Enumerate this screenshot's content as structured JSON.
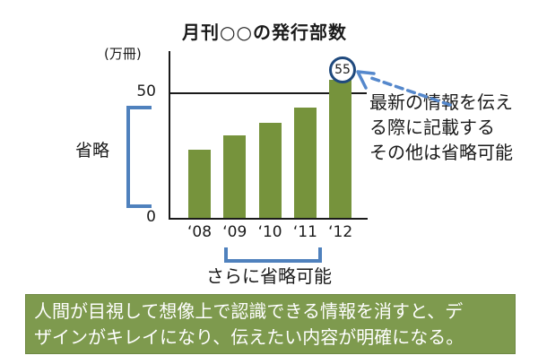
{
  "chart_data": {
    "type": "bar",
    "title": "月刊○○の発行部数",
    "unit_label": "(万冊)",
    "categories": [
      "‘08",
      "‘09",
      "‘10",
      "‘11",
      "‘12"
    ],
    "values": [
      27,
      33,
      38,
      44,
      55
    ],
    "xlabel": "",
    "ylabel": "(万冊)",
    "ylim": [
      0,
      62
    ],
    "yticks": [
      {
        "value": 50,
        "label": "50"
      },
      {
        "value": 0,
        "label": "0"
      }
    ],
    "gridline_at": 50,
    "grid": "single horizontal line at 50 only",
    "legend": false,
    "highlight": {
      "category": "‘12",
      "value": 55,
      "label": "55"
    },
    "bar_color": "#76933C"
  },
  "annotations": {
    "callout_text": "最新の情報を伝え\nる際に記載する\nその他は省略可能",
    "y_axis_omission_label": "省略",
    "x_axis_omission_label": "さらに省略可能"
  },
  "banner": {
    "text": "人間が目視して想像上で認識できる情報を消すと、デ\nザインがキレイになり、伝えたい内容が明確になる。",
    "bg_color": "#7E9A4E",
    "border_color": "#6E8843",
    "text_color": "#FFFFFF"
  },
  "colors": {
    "bar_green": "#76933C",
    "accent_blue": "#4F81BD",
    "arrow_blue": "#5588CC",
    "circle_blue": "#1F497D",
    "banner_green": "#7E9A4E",
    "banner_border": "#6E8843",
    "axis_black": "#1A1A1A"
  }
}
